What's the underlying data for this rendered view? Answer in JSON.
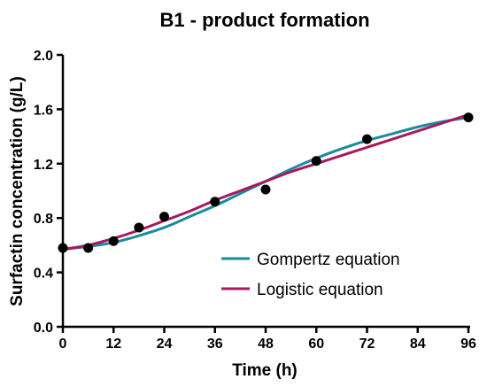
{
  "chart_data": {
    "type": "line",
    "title": "B1 - product formation",
    "xlabel": "Time (h)",
    "ylabel": "Surfactin concentration (g/L)",
    "xlim": [
      0,
      96
    ],
    "ylim": [
      0,
      2.0
    ],
    "x_ticks": [
      0,
      12,
      24,
      36,
      48,
      60,
      72,
      84,
      96
    ],
    "y_ticks": [
      0.0,
      0.4,
      0.8,
      1.2,
      1.6,
      2.0
    ],
    "x_tick_labels": [
      "0",
      "12",
      "24",
      "36",
      "48",
      "60",
      "72",
      "84",
      "96"
    ],
    "y_tick_labels": [
      "0.0",
      "0.4",
      "0.8",
      "1.2",
      "1.6",
      "2.0"
    ],
    "grid": false,
    "legend_position": "lower-right",
    "points": {
      "x": [
        0,
        6,
        12,
        18,
        24,
        36,
        48,
        60,
        72,
        96
      ],
      "y": [
        0.58,
        0.58,
        0.63,
        0.73,
        0.81,
        0.92,
        1.01,
        1.22,
        1.38,
        1.54
      ],
      "color": "#000000"
    },
    "series": [
      {
        "name": "Gompertz equation",
        "color": "#1b8a9e",
        "x": [
          0,
          6,
          12,
          18,
          24,
          30,
          36,
          42,
          48,
          54,
          60,
          66,
          72,
          78,
          84,
          90,
          96
        ],
        "y": [
          0.57,
          0.59,
          0.62,
          0.67,
          0.73,
          0.81,
          0.89,
          0.98,
          1.07,
          1.16,
          1.24,
          1.31,
          1.37,
          1.42,
          1.47,
          1.51,
          1.54
        ]
      },
      {
        "name": "Logistic equation",
        "color": "#a8185e",
        "x": [
          0,
          6,
          12,
          18,
          24,
          30,
          36,
          42,
          48,
          54,
          60,
          66,
          72,
          78,
          84,
          90,
          96
        ],
        "y": [
          0.57,
          0.6,
          0.65,
          0.71,
          0.78,
          0.85,
          0.93,
          1.0,
          1.07,
          1.14,
          1.2,
          1.26,
          1.32,
          1.38,
          1.44,
          1.5,
          1.56
        ]
      }
    ]
  }
}
